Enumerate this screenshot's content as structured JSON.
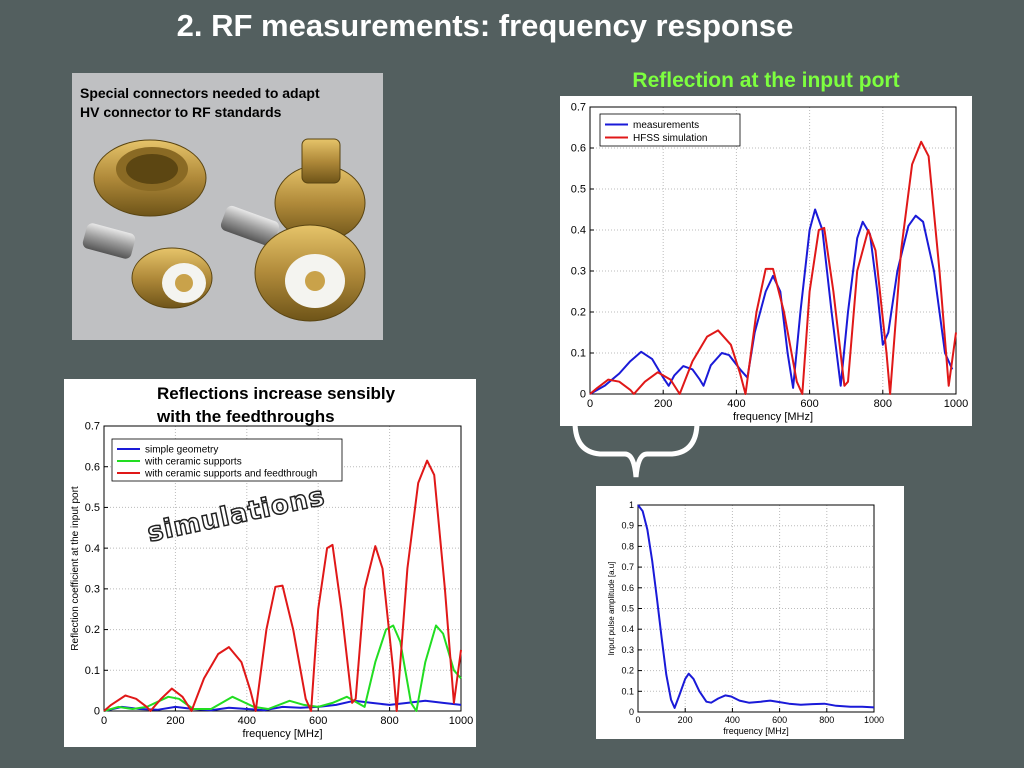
{
  "slide": {
    "title": "2. RF measurements: frequency response",
    "photo_caption": [
      "Special connectors needed to adapt",
      "HV connector to RF standards"
    ],
    "reflection_heading": "Reflection at the input port",
    "sim_caption": [
      "Reflections increase sensibly",
      "with the feedthroughs"
    ],
    "stamp": "simulations"
  },
  "colors": {
    "blue": "#1a1ad8",
    "red": "#e01818",
    "green": "#22dd22",
    "photo_bg": "#bfc0c2",
    "brass": "#b08a3a"
  },
  "chart_data": [
    {
      "id": "measurement",
      "type": "line",
      "xlabel": "frequency [MHz]",
      "ylabel": "",
      "xlim": [
        0,
        1000
      ],
      "ylim": [
        0,
        0.7
      ],
      "xticks": [
        0,
        200,
        400,
        600,
        800,
        1000
      ],
      "yticks": [
        0,
        0.1,
        0.2,
        0.3,
        0.4,
        0.5,
        0.6,
        0.7
      ],
      "ytick_labels": [
        "0",
        "0.1",
        "0.2",
        "0.3",
        "0.4",
        "0.5",
        "0.6",
        "0.7"
      ],
      "grid": true,
      "legend": "top-left",
      "series": [
        {
          "name": "measurements",
          "color": "#1a1ad8",
          "points": [
            [
              0,
              0
            ],
            [
              40,
              0.02
            ],
            [
              80,
              0.05
            ],
            [
              110,
              0.08
            ],
            [
              140,
              0.103
            ],
            [
              170,
              0.085
            ],
            [
              200,
              0.04
            ],
            [
              215,
              0.02
            ],
            [
              230,
              0.045
            ],
            [
              255,
              0.068
            ],
            [
              280,
              0.06
            ],
            [
              300,
              0.035
            ],
            [
              310,
              0.02
            ],
            [
              330,
              0.07
            ],
            [
              360,
              0.1
            ],
            [
              380,
              0.095
            ],
            [
              410,
              0.06
            ],
            [
              430,
              0.04
            ],
            [
              450,
              0.15
            ],
            [
              480,
              0.25
            ],
            [
              500,
              0.288
            ],
            [
              520,
              0.25
            ],
            [
              540,
              0.1
            ],
            [
              555,
              0.015
            ],
            [
              575,
              0.2
            ],
            [
              600,
              0.4
            ],
            [
              615,
              0.45
            ],
            [
              635,
              0.4
            ],
            [
              660,
              0.2
            ],
            [
              685,
              0.02
            ],
            [
              705,
              0.2
            ],
            [
              730,
              0.38
            ],
            [
              745,
              0.42
            ],
            [
              765,
              0.39
            ],
            [
              785,
              0.25
            ],
            [
              800,
              0.12
            ],
            [
              815,
              0.15
            ],
            [
              840,
              0.3
            ],
            [
              870,
              0.41
            ],
            [
              890,
              0.435
            ],
            [
              910,
              0.42
            ],
            [
              940,
              0.3
            ],
            [
              970,
              0.1
            ],
            [
              990,
              0.06
            ]
          ]
        },
        {
          "name": "HFSS simulation",
          "color": "#e01818",
          "points": [
            [
              0,
              0
            ],
            [
              20,
              0.015
            ],
            [
              50,
              0.035
            ],
            [
              80,
              0.03
            ],
            [
              110,
              0.01
            ],
            [
              120,
              0.0
            ],
            [
              150,
              0.03
            ],
            [
              185,
              0.053
            ],
            [
              220,
              0.035
            ],
            [
              245,
              0.0
            ],
            [
              280,
              0.08
            ],
            [
              320,
              0.14
            ],
            [
              350,
              0.155
            ],
            [
              385,
              0.12
            ],
            [
              410,
              0.05
            ],
            [
              425,
              0.0
            ],
            [
              455,
              0.2
            ],
            [
              480,
              0.305
            ],
            [
              500,
              0.305
            ],
            [
              530,
              0.2
            ],
            [
              565,
              0.03
            ],
            [
              580,
              0.0
            ],
            [
              600,
              0.25
            ],
            [
              625,
              0.4
            ],
            [
              640,
              0.405
            ],
            [
              665,
              0.25
            ],
            [
              695,
              0.02
            ],
            [
              705,
              0.03
            ],
            [
              730,
              0.3
            ],
            [
              760,
              0.4
            ],
            [
              780,
              0.35
            ],
            [
              810,
              0.1
            ],
            [
              820,
              0.0
            ],
            [
              850,
              0.35
            ],
            [
              880,
              0.56
            ],
            [
              905,
              0.615
            ],
            [
              925,
              0.58
            ],
            [
              955,
              0.3
            ],
            [
              980,
              0.02
            ],
            [
              1000,
              0.15
            ]
          ]
        }
      ]
    },
    {
      "id": "simulation",
      "type": "line",
      "xlabel": "frequency [MHz]",
      "ylabel": "Reflection coefficient at the input port",
      "xlim": [
        0,
        1000
      ],
      "ylim": [
        0,
        0.7
      ],
      "xticks": [
        0,
        200,
        400,
        600,
        800,
        1000
      ],
      "yticks": [
        0,
        0.1,
        0.2,
        0.3,
        0.4,
        0.5,
        0.6,
        0.7
      ],
      "ytick_labels": [
        "0",
        "0.1",
        "0.2",
        "0.3",
        "0.4",
        "0.5",
        "0.6",
        "0.7"
      ],
      "grid": true,
      "legend": "top-left",
      "series": [
        {
          "name": "simple geometry",
          "color": "#1a1ad8",
          "points": [
            [
              0,
              0
            ],
            [
              50,
              0.01
            ],
            [
              100,
              0.005
            ],
            [
              150,
              0.003
            ],
            [
              200,
              0.01
            ],
            [
              250,
              0.005
            ],
            [
              300,
              0.002
            ],
            [
              350,
              0.008
            ],
            [
              400,
              0.005
            ],
            [
              450,
              0.002
            ],
            [
              500,
              0.01
            ],
            [
              550,
              0.008
            ],
            [
              600,
              0.01
            ],
            [
              650,
              0.015
            ],
            [
              700,
              0.025
            ],
            [
              750,
              0.02
            ],
            [
              800,
              0.015
            ],
            [
              850,
              0.02
            ],
            [
              900,
              0.025
            ],
            [
              950,
              0.02
            ],
            [
              1000,
              0.015
            ]
          ]
        },
        {
          "name": "with ceramic supports",
          "color": "#22dd22",
          "points": [
            [
              0,
              0
            ],
            [
              40,
              0.01
            ],
            [
              80,
              0.005
            ],
            [
              120,
              0.01
            ],
            [
              180,
              0.035
            ],
            [
              210,
              0.03
            ],
            [
              250,
              0.005
            ],
            [
              300,
              0.005
            ],
            [
              360,
              0.035
            ],
            [
              420,
              0.01
            ],
            [
              460,
              0.005
            ],
            [
              520,
              0.025
            ],
            [
              560,
              0.015
            ],
            [
              600,
              0.01
            ],
            [
              640,
              0.02
            ],
            [
              680,
              0.035
            ],
            [
              710,
              0.02
            ],
            [
              730,
              0.01
            ],
            [
              760,
              0.12
            ],
            [
              790,
              0.2
            ],
            [
              810,
              0.21
            ],
            [
              830,
              0.17
            ],
            [
              860,
              0.02
            ],
            [
              875,
              0.0
            ],
            [
              900,
              0.12
            ],
            [
              930,
              0.21
            ],
            [
              950,
              0.19
            ],
            [
              980,
              0.1
            ],
            [
              1000,
              0.08
            ]
          ]
        },
        {
          "name": "with ceramic supports and feedthrough",
          "color": "#e01818",
          "points": [
            [
              0,
              0
            ],
            [
              20,
              0.015
            ],
            [
              60,
              0.038
            ],
            [
              90,
              0.03
            ],
            [
              120,
              0.01
            ],
            [
              130,
              0.0
            ],
            [
              160,
              0.03
            ],
            [
              190,
              0.055
            ],
            [
              220,
              0.035
            ],
            [
              245,
              0.0
            ],
            [
              280,
              0.08
            ],
            [
              320,
              0.14
            ],
            [
              350,
              0.157
            ],
            [
              385,
              0.12
            ],
            [
              410,
              0.05
            ],
            [
              425,
              0.0
            ],
            [
              455,
              0.2
            ],
            [
              480,
              0.305
            ],
            [
              500,
              0.308
            ],
            [
              530,
              0.2
            ],
            [
              565,
              0.03
            ],
            [
              580,
              0.0
            ],
            [
              600,
              0.25
            ],
            [
              625,
              0.4
            ],
            [
              640,
              0.408
            ],
            [
              665,
              0.25
            ],
            [
              695,
              0.02
            ],
            [
              705,
              0.03
            ],
            [
              730,
              0.3
            ],
            [
              760,
              0.405
            ],
            [
              780,
              0.35
            ],
            [
              810,
              0.1
            ],
            [
              820,
              0.0
            ],
            [
              850,
              0.35
            ],
            [
              880,
              0.56
            ],
            [
              905,
              0.615
            ],
            [
              925,
              0.58
            ],
            [
              955,
              0.3
            ],
            [
              980,
              0.02
            ],
            [
              1000,
              0.15
            ]
          ]
        }
      ]
    },
    {
      "id": "pulse",
      "type": "line",
      "xlabel": "frequency [MHz]",
      "ylabel": "Input pulse amplitude [a.u]",
      "xlim": [
        0,
        1000
      ],
      "ylim": [
        0,
        1
      ],
      "xticks": [
        0,
        200,
        400,
        600,
        800,
        1000
      ],
      "yticks": [
        0,
        0.1,
        0.2,
        0.3,
        0.4,
        0.5,
        0.6,
        0.7,
        0.8,
        0.9,
        1
      ],
      "ytick_labels": [
        "0",
        "0.1",
        "0.2",
        "0.3",
        "0.4",
        "0.5",
        "0.6",
        "0.7",
        "0.8",
        "0.9",
        "1"
      ],
      "grid": true,
      "legend": "none",
      "series": [
        {
          "name": "",
          "color": "#1a1ad8",
          "points": [
            [
              0,
              1
            ],
            [
              20,
              0.97
            ],
            [
              40,
              0.88
            ],
            [
              60,
              0.73
            ],
            [
              80,
              0.55
            ],
            [
              100,
              0.36
            ],
            [
              120,
              0.18
            ],
            [
              140,
              0.06
            ],
            [
              155,
              0.02
            ],
            [
              175,
              0.08
            ],
            [
              200,
              0.16
            ],
            [
              215,
              0.185
            ],
            [
              235,
              0.16
            ],
            [
              260,
              0.1
            ],
            [
              290,
              0.05
            ],
            [
              310,
              0.045
            ],
            [
              340,
              0.065
            ],
            [
              370,
              0.08
            ],
            [
              395,
              0.075
            ],
            [
              430,
              0.055
            ],
            [
              470,
              0.045
            ],
            [
              520,
              0.05
            ],
            [
              560,
              0.055
            ],
            [
              600,
              0.048
            ],
            [
              640,
              0.04
            ],
            [
              690,
              0.035
            ],
            [
              740,
              0.038
            ],
            [
              790,
              0.04
            ],
            [
              840,
              0.03
            ],
            [
              900,
              0.025
            ],
            [
              950,
              0.025
            ],
            [
              1000,
              0.022
            ]
          ]
        }
      ]
    }
  ]
}
